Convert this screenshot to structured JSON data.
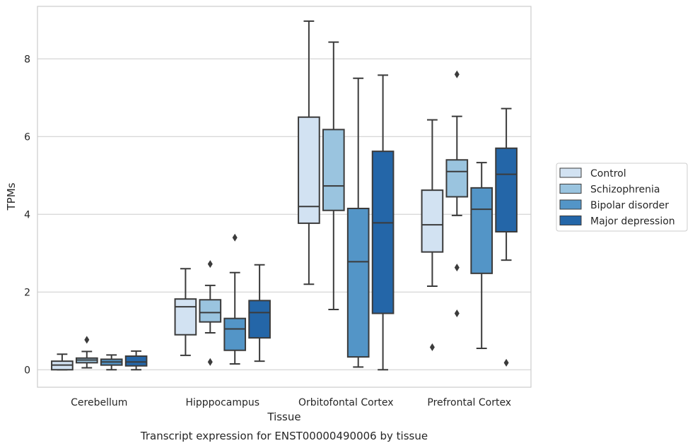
{
  "chart_data": {
    "type": "box",
    "xlabel": "Tissue",
    "ylabel": "TPMs",
    "caption": "Transcript expression for ENST00000490006 by tissue",
    "ylim": [
      -0.45,
      9.35
    ],
    "yticks": [
      0,
      2,
      4,
      6,
      8
    ],
    "grid": "horizontal",
    "legend_position": "right",
    "categories": [
      "Cerebellum",
      "Hipppocampus",
      "Orbitofontal Cortex",
      "Prefrontal Cortex"
    ],
    "series": [
      {
        "name": "Control",
        "color": "#d2e2f2",
        "boxes": [
          {
            "whislo": 0.0,
            "q1": 0.0,
            "med": 0.12,
            "q3": 0.22,
            "whishi": 0.4,
            "fliers": []
          },
          {
            "whislo": 0.37,
            "q1": 0.9,
            "med": 1.62,
            "q3": 1.82,
            "whishi": 2.6,
            "fliers": []
          },
          {
            "whislo": 2.2,
            "q1": 3.77,
            "med": 4.2,
            "q3": 6.5,
            "whishi": 8.97,
            "fliers": []
          },
          {
            "whislo": 2.15,
            "q1": 3.03,
            "med": 3.73,
            "q3": 4.62,
            "whishi": 6.43,
            "fliers": [
              0.58
            ]
          }
        ]
      },
      {
        "name": "Schizophrenia",
        "color": "#9ac4df",
        "boxes": [
          {
            "whislo": 0.05,
            "q1": 0.18,
            "med": 0.25,
            "q3": 0.3,
            "whishi": 0.47,
            "fliers": [
              0.77
            ]
          },
          {
            "whislo": 0.95,
            "q1": 1.23,
            "med": 1.47,
            "q3": 1.8,
            "whishi": 2.17,
            "fliers": [
              2.72,
              0.2
            ]
          },
          {
            "whislo": 1.55,
            "q1": 4.1,
            "med": 4.73,
            "q3": 6.18,
            "whishi": 8.43,
            "fliers": []
          },
          {
            "whislo": 3.97,
            "q1": 4.45,
            "med": 5.1,
            "q3": 5.4,
            "whishi": 6.52,
            "fliers": [
              7.6,
              2.63,
              1.45
            ]
          }
        ]
      },
      {
        "name": "Bipolar disorder",
        "color": "#5395c7",
        "boxes": [
          {
            "whislo": 0.0,
            "q1": 0.12,
            "med": 0.2,
            "q3": 0.27,
            "whishi": 0.38,
            "fliers": []
          },
          {
            "whislo": 0.15,
            "q1": 0.5,
            "med": 1.05,
            "q3": 1.32,
            "whishi": 2.5,
            "fliers": [
              3.4
            ]
          },
          {
            "whislo": 0.07,
            "q1": 0.33,
            "med": 2.78,
            "q3": 4.15,
            "whishi": 7.5,
            "fliers": []
          },
          {
            "whislo": 0.55,
            "q1": 2.48,
            "med": 4.13,
            "q3": 4.68,
            "whishi": 5.33,
            "fliers": []
          }
        ]
      },
      {
        "name": "Major depression",
        "color": "#2466a8",
        "boxes": [
          {
            "whislo": 0.0,
            "q1": 0.1,
            "med": 0.2,
            "q3": 0.35,
            "whishi": 0.48,
            "fliers": []
          },
          {
            "whislo": 0.22,
            "q1": 0.82,
            "med": 1.47,
            "q3": 1.78,
            "whishi": 2.7,
            "fliers": []
          },
          {
            "whislo": 0.0,
            "q1": 1.45,
            "med": 3.78,
            "q3": 5.62,
            "whishi": 7.58,
            "fliers": []
          },
          {
            "whislo": 2.82,
            "q1": 3.55,
            "med": 5.03,
            "q3": 5.7,
            "whishi": 6.72,
            "fliers": [
              0.18
            ]
          }
        ]
      }
    ]
  }
}
